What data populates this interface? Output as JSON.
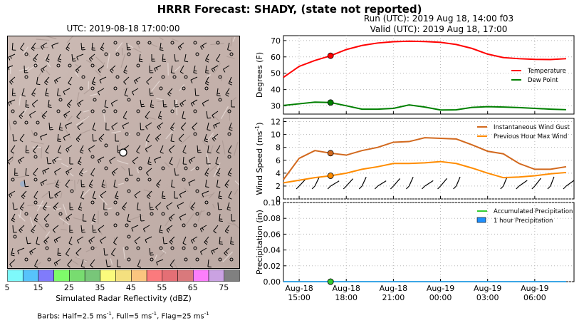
{
  "title": "HRRR Forecast: SHADY, (state not reported)",
  "map": {
    "title": "UTC: 2019-08-18 17:00:00",
    "colorbar": {
      "label": "Simulated Radar Reflectivity (dBZ)",
      "ticks": [
        "5",
        "15",
        "25",
        "35",
        "45",
        "55",
        "65",
        "75"
      ],
      "colors": [
        "#7ef9fb",
        "#57c3fb",
        "#807bfb",
        "#7efb6a",
        "#78dc70",
        "#78c679",
        "#fbfb7c",
        "#f4e07f",
        "#fbc57f",
        "#fb7a7d",
        "#e46f75",
        "#d9797c",
        "#fc7efb",
        "#caa2e2",
        "#808080"
      ]
    },
    "barb_note_parts": [
      "Barbs: Half=2.5 ms",
      "-1",
      ", Full=5 ms",
      "-1",
      ", Flag=25 ms",
      "-1"
    ]
  },
  "run_line1": "Run (UTC): 2019 Aug 18, 14:00 f03",
  "run_line2": "Valid (UTC): 2019 Aug 18, 17:00",
  "x_ticks": [
    "Aug-18\n15:00",
    "Aug-18\n18:00",
    "Aug-18\n21:00",
    "Aug-19\n00:00",
    "Aug-19\n03:00",
    "Aug-19\n06:00"
  ],
  "chart_data": [
    {
      "type": "line",
      "ylabel": "Degrees (F)",
      "yticks": [
        "30",
        "40",
        "50",
        "60",
        "70"
      ],
      "ylim": [
        25,
        73
      ],
      "x_hours": [
        14,
        15,
        16,
        17,
        18,
        19,
        20,
        21,
        22,
        23,
        24,
        25,
        26,
        27,
        28,
        29,
        30,
        31,
        32
      ],
      "series": [
        {
          "name": "Temperature",
          "color": "#ff0000",
          "values": [
            47.5,
            54.2,
            57.8,
            60.7,
            64.5,
            67.0,
            68.5,
            69.3,
            69.6,
            69.4,
            68.9,
            67.6,
            65.2,
            61.7,
            59.6,
            58.9,
            58.5,
            58.4,
            58.9
          ]
        },
        {
          "name": "Dew Point",
          "color": "#008000",
          "values": [
            30.3,
            31.3,
            32.3,
            32.1,
            30.1,
            28.0,
            28.0,
            28.5,
            30.6,
            29.3,
            27.5,
            27.6,
            29.1,
            29.5,
            29.3,
            29.0,
            28.5,
            28.0,
            27.7
          ]
        }
      ],
      "marker_hour": 17,
      "legend": "right"
    },
    {
      "type": "line",
      "ylabel_main": "Wind Speed (ms",
      "ylabel_sup": "-1",
      "ylabel_end": ")",
      "yticks": [
        "0",
        "2",
        "4",
        "6",
        "8",
        "10",
        "12"
      ],
      "ylim": [
        0,
        12.5
      ],
      "x_hours": [
        14,
        15,
        16,
        17,
        18,
        19,
        20,
        21,
        22,
        23,
        24,
        25,
        26,
        27,
        28,
        29,
        30,
        31,
        32
      ],
      "series": [
        {
          "name": "Instantaneous Wind Gust",
          "color": "#d2691e",
          "values": [
            3.0,
            6.3,
            7.5,
            7.1,
            6.8,
            7.5,
            8.0,
            8.8,
            8.9,
            9.5,
            9.4,
            9.3,
            8.4,
            7.4,
            7.0,
            5.5,
            4.6,
            4.6,
            5.0
          ]
        },
        {
          "name": "Previous Hour Max Wind",
          "color": "#ff8c00",
          "values": [
            2.5,
            2.9,
            3.3,
            3.6,
            4.0,
            4.6,
            5.0,
            5.5,
            5.5,
            5.6,
            5.8,
            5.5,
            4.8,
            4.0,
            3.3,
            3.4,
            3.6,
            3.9,
            4.1
          ]
        }
      ],
      "marker_hour": 17,
      "legend": "top-right"
    },
    {
      "type": "bar",
      "ylabel": "Precipitation (in)",
      "yticks": [
        "0.00",
        "0.02",
        "0.04",
        "0.06",
        "0.08",
        "0.10"
      ],
      "ylim": [
        0,
        0.1
      ],
      "x_hours": [
        14,
        15,
        16,
        17,
        18,
        19,
        20,
        21,
        22,
        23,
        24,
        25,
        26,
        27,
        28,
        29,
        30,
        31,
        32
      ],
      "series": [
        {
          "name": "Accumulated Precipitation",
          "color": "#32cd32",
          "values": [
            0,
            0,
            0,
            0,
            0,
            0,
            0,
            0,
            0,
            0,
            0,
            0,
            0,
            0,
            0,
            0,
            0,
            0,
            0
          ]
        },
        {
          "name": "1 hour Precipitation",
          "color": "#1e90ff",
          "values": [
            0,
            0,
            0,
            0,
            0,
            0,
            0,
            0,
            0,
            0,
            0,
            0,
            0,
            0,
            0,
            0,
            0,
            0,
            0
          ]
        }
      ],
      "marker_hour": 17,
      "legend": "top-right"
    }
  ]
}
